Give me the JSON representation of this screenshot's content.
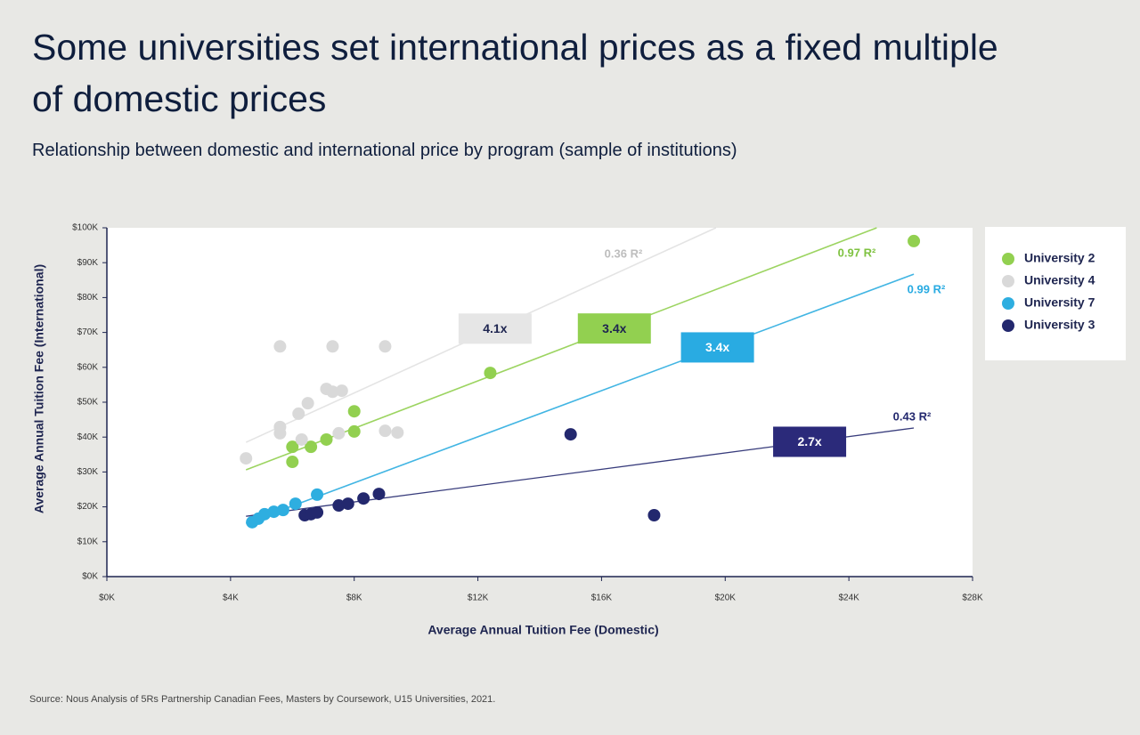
{
  "chart_data": {
    "type": "scatter",
    "title": "Some universities set international prices as a fixed multiple of domestic prices",
    "subtitle": "Relationship between domestic and international price by program (sample of institutions)",
    "x_label": "Average Annual Tuition Fee (Domestic)",
    "y_label": "Average Annual Tuition Fee (International)",
    "source": "Source: Nous Analysis of 5Rs Partnership Canadian Fees, Masters by Coursework, U15 Universities, 2021.",
    "xlim": [
      0,
      28000
    ],
    "ylim": [
      0,
      100000
    ],
    "xticks": [
      {
        "value": 0,
        "label": "$0K"
      },
      {
        "value": 4000,
        "label": "$4K"
      },
      {
        "value": 8000,
        "label": "$8K"
      },
      {
        "value": 12000,
        "label": "$12K"
      },
      {
        "value": 16000,
        "label": "$16K"
      },
      {
        "value": 20000,
        "label": "$20K"
      },
      {
        "value": 24000,
        "label": "$24K"
      },
      {
        "value": 28000,
        "label": "$28K"
      }
    ],
    "yticks": [
      {
        "value": 0,
        "label": "$0K"
      },
      {
        "value": 10000,
        "label": "$10K"
      },
      {
        "value": 20000,
        "label": "$20K"
      },
      {
        "value": 30000,
        "label": "$30K"
      },
      {
        "value": 40000,
        "label": "$40K"
      },
      {
        "value": 50000,
        "label": "$50K"
      },
      {
        "value": 60000,
        "label": "$60K"
      },
      {
        "value": 70000,
        "label": "$70K"
      },
      {
        "value": 80000,
        "label": "$80K"
      },
      {
        "value": 90000,
        "label": "$90K"
      },
      {
        "value": 100000,
        "label": "$100K"
      }
    ],
    "legend_position": "right",
    "series": [
      {
        "name": "University 2",
        "color": "#92d050",
        "x": [
          6000,
          6000,
          6600,
          7100,
          8000,
          8000,
          12400,
          26100
        ],
        "values": [
          37200,
          32900,
          37200,
          39300,
          47400,
          41600,
          58400,
          96200
        ],
        "trendline": {
          "x": [
            4500,
            24900
          ],
          "y": [
            30600,
            100000
          ]
        },
        "r2_label": "0.97 R²",
        "multiple_label": "3.4x"
      },
      {
        "name": "University 4",
        "color": "#d9d9d9",
        "x": [
          4500,
          5600,
          7300,
          9000,
          7100,
          7300,
          7600,
          6500,
          6200,
          5600,
          5600,
          6300,
          7500,
          9000,
          9400
        ],
        "values": [
          33900,
          66000,
          66000,
          66000,
          53800,
          53000,
          53300,
          49700,
          46700,
          42900,
          41100,
          39300,
          41100,
          41800,
          41300
        ],
        "trendline": {
          "x": [
            4500,
            19700
          ],
          "y": [
            38500,
            100000
          ]
        },
        "r2_label": "0.36 R²",
        "multiple_label": "4.1x"
      },
      {
        "name": "University 7",
        "color": "#2eaee0",
        "x": [
          4700,
          4900,
          5100,
          5400,
          5700,
          6100,
          6800
        ],
        "values": [
          15600,
          16600,
          17900,
          18600,
          19100,
          20900,
          23500
        ],
        "trendline": {
          "x": [
            4500,
            26100
          ],
          "y": [
            15300,
            86700
          ]
        },
        "r2_label": "0.99 R²",
        "multiple_label": "3.4x"
      },
      {
        "name": "University 3",
        "color": "#23286e",
        "x": [
          6400,
          6600,
          6800,
          7500,
          7800,
          8300,
          8800,
          15000,
          17700
        ],
        "values": [
          17600,
          17900,
          18400,
          20400,
          20900,
          22400,
          23700,
          40800,
          17600
        ],
        "trendline": {
          "x": [
            4500,
            26100
          ],
          "y": [
            17300,
            42600
          ]
        },
        "r2_label": "0.43 R²",
        "multiple_label": "2.7x"
      }
    ]
  }
}
